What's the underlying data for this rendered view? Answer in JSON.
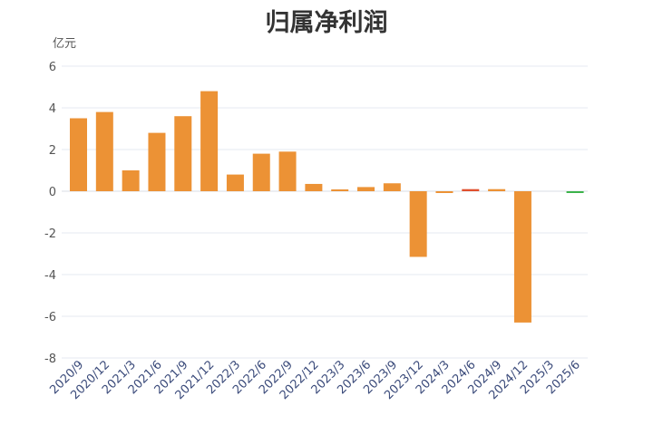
{
  "chart_data": {
    "type": "bar",
    "title": "归属净利润",
    "unit_label": "亿元",
    "xlabel": "",
    "ylabel": "",
    "ylim": [
      -8,
      6
    ],
    "yticks": [
      6,
      4,
      2,
      0,
      -2,
      -4,
      -6,
      -8
    ],
    "ytick_labels": [
      "6",
      "4",
      "2",
      "0",
      "-2",
      "-4",
      "-6",
      "-8"
    ],
    "grid": true,
    "legend": "none",
    "categories": [
      "2020/9",
      "2020/12",
      "2021/3",
      "2021/6",
      "2021/9",
      "2021/12",
      "2022/3",
      "2022/6",
      "2022/9",
      "2022/12",
      "2023/3",
      "2023/6",
      "2023/9",
      "2023/12",
      "2024/3",
      "2024/6",
      "2024/9",
      "2024/12",
      "2025/3",
      "2025/6"
    ],
    "values": [
      3.5,
      3.8,
      1.0,
      2.8,
      3.6,
      4.8,
      0.8,
      1.8,
      1.9,
      0.35,
      0.05,
      0.2,
      0.38,
      -3.15,
      -0.02,
      0.1,
      0.1,
      -6.3,
      0,
      -0.08
    ],
    "bar_colors": [
      "#ec9235",
      "#ec9235",
      "#ec9235",
      "#ec9235",
      "#ec9235",
      "#ec9235",
      "#ec9235",
      "#ec9235",
      "#ec9235",
      "#ec9235",
      "#ec9235",
      "#ec9235",
      "#ec9235",
      "#ec9235",
      "#ec9235",
      "#e0502e",
      "#ec9235",
      "#ec9235",
      "#ec9235",
      "#3cb34a"
    ]
  }
}
